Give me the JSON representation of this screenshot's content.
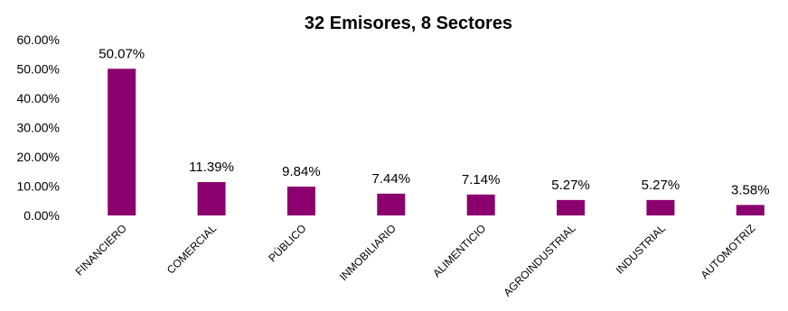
{
  "chart_data": {
    "type": "bar",
    "title": "32 Emisores, 8 Sectores",
    "xlabel": "",
    "ylabel": "",
    "categories": [
      "FINANCIERO",
      "COMERCIAL",
      "PÚBLICO",
      "INMOBILIARIO",
      "ALIMENTICIO",
      "AGROINDUSTRIAL",
      "INDUSTRIAL",
      "AUTOMOTRIZ"
    ],
    "values": [
      50.07,
      11.39,
      9.84,
      7.44,
      7.14,
      5.27,
      5.27,
      3.58
    ],
    "data_labels": [
      "50.07%",
      "11.39%",
      "9.84%",
      "7.44%",
      "7.14%",
      "5.27%",
      "5.27%",
      "3.58%"
    ],
    "ylim": [
      0,
      60
    ],
    "yticks": [
      0,
      10,
      20,
      30,
      40,
      50,
      60
    ],
    "ytick_labels": [
      "0.00%",
      "10.00%",
      "20.00%",
      "30.00%",
      "40.00%",
      "50.00%",
      "60.00%"
    ],
    "bar_color": "#8B006E",
    "grid": false,
    "legend": "none"
  }
}
